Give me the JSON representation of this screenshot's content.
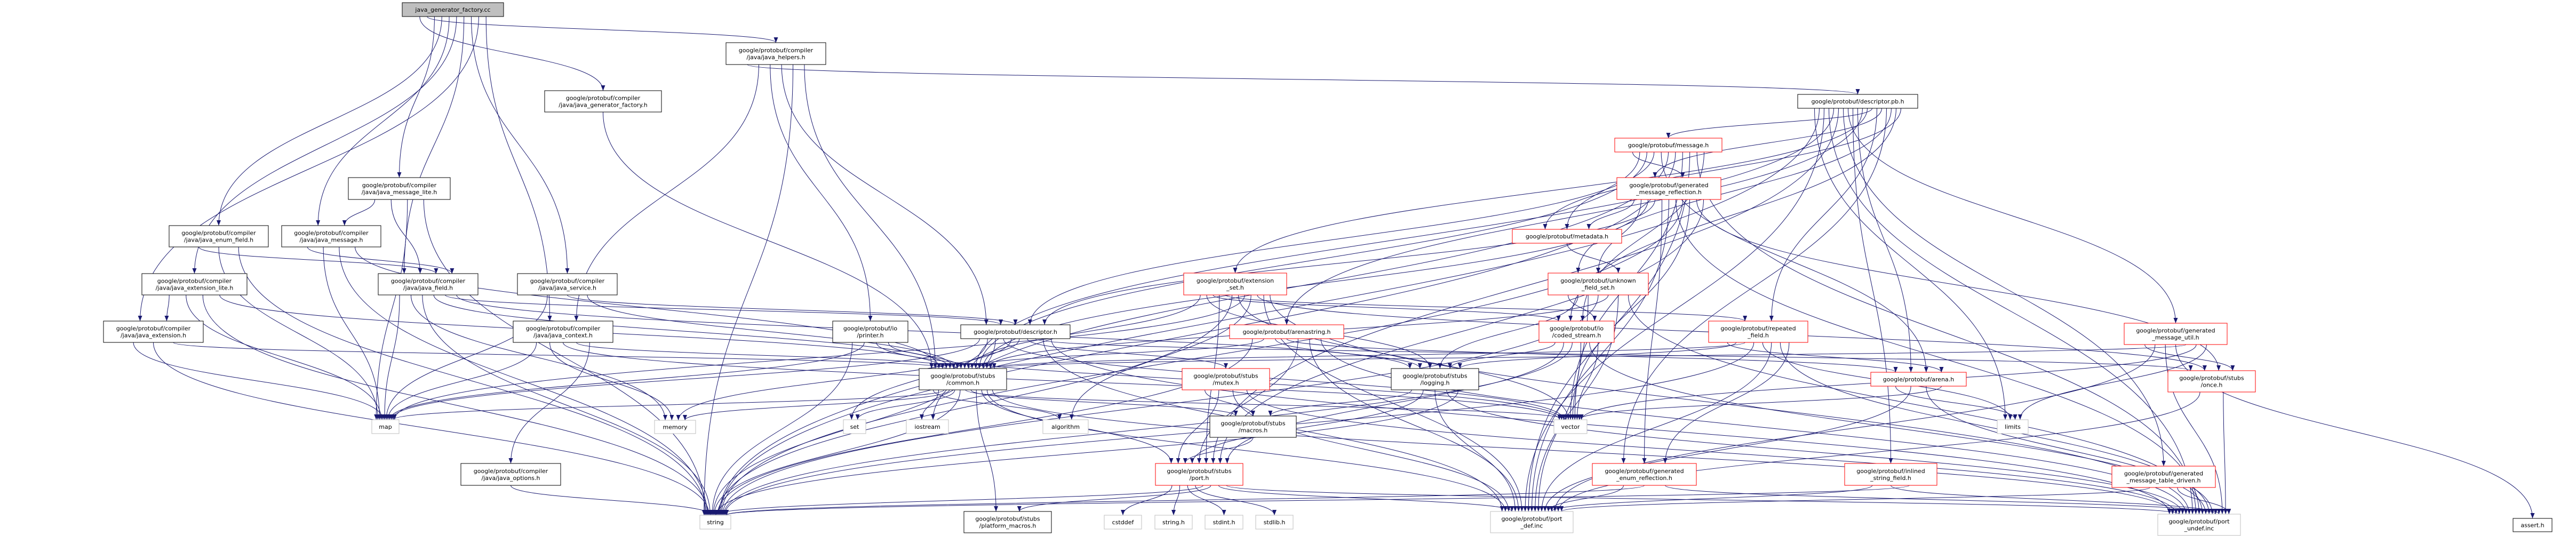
{
  "colors": {
    "edge": "#191970",
    "root_fill": "#bfbfbf",
    "documented_border": "#000000",
    "truncated_border": "#ff0000",
    "external_border": "#bfbfbf"
  },
  "nodes": [
    {
      "name": "java_generator_factory.cc",
      "lines": [
        "java_generator_factory.cc"
      ],
      "kind": "root"
    },
    {
      "name": "google/protobuf/compiler/java/java_generator_factory.h",
      "lines": [
        "google/protobuf/compiler",
        "/java/java_generator_factory.h"
      ],
      "kind": "documented"
    },
    {
      "name": "google/protobuf/compiler/java/java_helpers.h",
      "lines": [
        "google/protobuf/compiler",
        "/java/java_helpers.h"
      ],
      "kind": "documented"
    },
    {
      "name": "google/protobuf/descriptor.pb.h",
      "lines": [
        "google/protobuf/descriptor.pb.h"
      ],
      "kind": "documented"
    },
    {
      "name": "google/protobuf/compiler/java/java_message_lite.h",
      "lines": [
        "google/protobuf/compiler",
        "/java/java_message_lite.h"
      ],
      "kind": "documented"
    },
    {
      "name": "google/protobuf/compiler/java/java_enum_field.h",
      "lines": [
        "google/protobuf/compiler",
        "/java/java_enum_field.h"
      ],
      "kind": "documented"
    },
    {
      "name": "google/protobuf/compiler/java/java_message.h",
      "lines": [
        "google/protobuf/compiler",
        "/java/java_message.h"
      ],
      "kind": "documented"
    },
    {
      "name": "google/protobuf/compiler/java/java_extension_lite.h",
      "lines": [
        "google/protobuf/compiler",
        "/java/java_extension_lite.h"
      ],
      "kind": "documented"
    },
    {
      "name": "google/protobuf/compiler/java/java_field.h",
      "lines": [
        "google/protobuf/compiler",
        "/java/java_field.h"
      ],
      "kind": "documented"
    },
    {
      "name": "google/protobuf/compiler/java/java_service.h",
      "lines": [
        "google/protobuf/compiler",
        "/java/java_service.h"
      ],
      "kind": "documented"
    },
    {
      "name": "google/protobuf/compiler/java/java_extension.h",
      "lines": [
        "google/protobuf/compiler",
        "/java/java_extension.h"
      ],
      "kind": "documented"
    },
    {
      "name": "google/protobuf/compiler/java/java_context.h",
      "lines": [
        "google/protobuf/compiler",
        "/java/java_context.h"
      ],
      "kind": "documented"
    },
    {
      "name": "map",
      "lines": [
        "map"
      ],
      "kind": "external"
    },
    {
      "name": "memory",
      "lines": [
        "memory"
      ],
      "kind": "external"
    },
    {
      "name": "google/protobuf/compiler/java/java_options.h",
      "lines": [
        "google/protobuf/compiler",
        "/java/java_options.h"
      ],
      "kind": "documented"
    },
    {
      "name": "google/protobuf/io/printer.h",
      "lines": [
        "google/protobuf/io",
        "/printer.h"
      ],
      "kind": "documented"
    },
    {
      "name": "google/protobuf/descriptor.h",
      "lines": [
        "google/protobuf/descriptor.h"
      ],
      "kind": "documented"
    },
    {
      "name": "google/protobuf/extension_set.h",
      "lines": [
        "google/protobuf/extension",
        "_set.h"
      ],
      "kind": "truncated"
    },
    {
      "name": "google/protobuf/arenastring.h",
      "lines": [
        "google/protobuf/arenastring.h"
      ],
      "kind": "truncated"
    },
    {
      "name": "google/protobuf/stubs/common.h",
      "lines": [
        "google/protobuf/stubs",
        "/common.h"
      ],
      "kind": "documented"
    },
    {
      "name": "google/protobuf/stubs/mutex.h",
      "lines": [
        "google/protobuf/stubs",
        "/mutex.h"
      ],
      "kind": "truncated"
    },
    {
      "name": "set",
      "lines": [
        "set"
      ],
      "kind": "external"
    },
    {
      "name": "iostream",
      "lines": [
        "iostream"
      ],
      "kind": "external"
    },
    {
      "name": "algorithm",
      "lines": [
        "algorithm"
      ],
      "kind": "external"
    },
    {
      "name": "google/protobuf/stubs/macros.h",
      "lines": [
        "google/protobuf/stubs",
        "/macros.h"
      ],
      "kind": "documented"
    },
    {
      "name": "google/protobuf/stubs/port.h",
      "lines": [
        "google/protobuf/stubs",
        "/port.h"
      ],
      "kind": "truncated"
    },
    {
      "name": "string",
      "lines": [
        "string"
      ],
      "kind": "external"
    },
    {
      "name": "google/protobuf/stubs/platform_macros.h",
      "lines": [
        "google/protobuf/stubs",
        "/platform_macros.h"
      ],
      "kind": "documented"
    },
    {
      "name": "cstddef",
      "lines": [
        "cstddef"
      ],
      "kind": "external"
    },
    {
      "name": "string.h",
      "lines": [
        "string.h"
      ],
      "kind": "external"
    },
    {
      "name": "stdint.h",
      "lines": [
        "stdint.h"
      ],
      "kind": "external"
    },
    {
      "name": "stdlib.h",
      "lines": [
        "stdlib.h"
      ],
      "kind": "external"
    },
    {
      "name": "google/protobuf/message.h",
      "lines": [
        "google/protobuf/message.h"
      ],
      "kind": "truncated"
    },
    {
      "name": "google/protobuf/generated_message_reflection.h",
      "lines": [
        "google/protobuf/generated",
        "_message_reflection.h"
      ],
      "kind": "truncated"
    },
    {
      "name": "google/protobuf/metadata.h",
      "lines": [
        "google/protobuf/metadata.h"
      ],
      "kind": "truncated"
    },
    {
      "name": "google/protobuf/unknown_field_set.h",
      "lines": [
        "google/protobuf/unknown",
        "_field_set.h"
      ],
      "kind": "truncated"
    },
    {
      "name": "google/protobuf/io/coded_stream.h",
      "lines": [
        "google/protobuf/io",
        "/coded_stream.h"
      ],
      "kind": "truncated"
    },
    {
      "name": "google/protobuf/repeated_field.h",
      "lines": [
        "google/protobuf/repeated",
        "_field.h"
      ],
      "kind": "truncated"
    },
    {
      "name": "google/protobuf/stubs/logging.h",
      "lines": [
        "google/protobuf/stubs",
        "/logging.h"
      ],
      "kind": "documented"
    },
    {
      "name": "google/protobuf/arena.h",
      "lines": [
        "google/protobuf/arena.h"
      ],
      "kind": "truncated"
    },
    {
      "name": "vector",
      "lines": [
        "vector"
      ],
      "kind": "external"
    },
    {
      "name": "limits",
      "lines": [
        "limits"
      ],
      "kind": "external"
    },
    {
      "name": "google/protobuf/generated_enum_reflection.h",
      "lines": [
        "google/protobuf/generated",
        "_enum_reflection.h"
      ],
      "kind": "truncated"
    },
    {
      "name": "google/protobuf/inlined_string_field.h",
      "lines": [
        "google/protobuf/inlined",
        "_string_field.h"
      ],
      "kind": "truncated"
    },
    {
      "name": "google/protobuf/port_def.inc",
      "lines": [
        "google/protobuf/port",
        "_def.inc"
      ],
      "kind": "external"
    },
    {
      "name": "google/protobuf/generated_message_util.h",
      "lines": [
        "google/protobuf/generated",
        "_message_util.h"
      ],
      "kind": "truncated"
    },
    {
      "name": "google/protobuf/stubs/once.h",
      "lines": [
        "google/protobuf/stubs",
        "/once.h"
      ],
      "kind": "truncated"
    },
    {
      "name": "google/protobuf/generated_message_table_driven.h",
      "lines": [
        "google/protobuf/generated",
        "_message_table_driven.h"
      ],
      "kind": "truncated"
    },
    {
      "name": "google/protobuf/port_undef.inc",
      "lines": [
        "google/protobuf/port",
        "_undef.inc"
      ],
      "kind": "external"
    },
    {
      "name": "assert.h",
      "lines": [
        "assert.h"
      ],
      "kind": "documented"
    }
  ],
  "edges": [
    {
      "from": "java_generator_factory.cc",
      "to": [
        "google/protobuf/compiler/java/java_generator_factory.h",
        "google/protobuf/compiler/java/java_helpers.h",
        "google/protobuf/compiler/java/java_message_lite.h",
        "google/protobuf/compiler/java/java_enum_field.h",
        "google/protobuf/compiler/java/java_message.h",
        "google/protobuf/compiler/java/java_extension_lite.h",
        "google/protobuf/compiler/java/java_field.h",
        "google/protobuf/compiler/java/java_service.h",
        "google/protobuf/compiler/java/java_extension.h",
        "google/protobuf/compiler/java/java_context.h"
      ]
    },
    {
      "from": "google/protobuf/compiler/java/java_generator_factory.h",
      "to": [
        "google/protobuf/stubs/common.h"
      ]
    },
    {
      "from": "google/protobuf/compiler/java/java_helpers.h",
      "to": [
        "google/protobuf/descriptor.pb.h",
        "google/protobuf/compiler/java/java_context.h",
        "google/protobuf/io/printer.h",
        "google/protobuf/descriptor.h",
        "string",
        "google/protobuf/stubs/common.h"
      ]
    },
    {
      "from": "google/protobuf/compiler/java/java_message_lite.h",
      "to": [
        "google/protobuf/compiler/java/java_message.h",
        "google/protobuf/compiler/java/java_field.h",
        "map",
        "string"
      ]
    },
    {
      "from": "google/protobuf/compiler/java/java_enum_field.h",
      "to": [
        "google/protobuf/compiler/java/java_field.h",
        "map",
        "string"
      ]
    },
    {
      "from": "google/protobuf/compiler/java/java_message.h",
      "to": [
        "google/protobuf/compiler/java/java_field.h",
        "map",
        "string",
        "google/protobuf/stubs/common.h"
      ]
    },
    {
      "from": "google/protobuf/compiler/java/java_extension_lite.h",
      "to": [
        "google/protobuf/compiler/java/java_extension.h",
        "map",
        "string",
        "google/protobuf/stubs/common.h"
      ]
    },
    {
      "from": "google/protobuf/compiler/java/java_extension.h",
      "to": [
        "map",
        "string",
        "google/protobuf/stubs/common.h"
      ]
    },
    {
      "from": "google/protobuf/compiler/java/java_field.h",
      "to": [
        "map",
        "memory",
        "string",
        "google/protobuf/stubs/common.h",
        "google/protobuf/descriptor.h",
        "google/protobuf/stubs/logging.h"
      ]
    },
    {
      "from": "google/protobuf/compiler/java/java_service.h",
      "to": [
        "map",
        "google/protobuf/descriptor.h",
        "google/protobuf/stubs/common.h"
      ]
    },
    {
      "from": "google/protobuf/compiler/java/java_context.h",
      "to": [
        "map",
        "memory",
        "vector",
        "google/protobuf/stubs/common.h",
        "google/protobuf/compiler/java/java_options.h"
      ]
    },
    {
      "from": "google/protobuf/compiler/java/java_options.h",
      "to": [
        "string"
      ]
    },
    {
      "from": "google/protobuf/io/printer.h",
      "to": [
        "string",
        "map",
        "vector",
        "google/protobuf/stubs/common.h"
      ]
    },
    {
      "from": "google/protobuf/descriptor.h",
      "to": [
        "map",
        "set",
        "string",
        "vector",
        "memory",
        "google/protobuf/stubs/common.h",
        "google/protobuf/stubs/mutex.h",
        "google/protobuf/stubs/once.h",
        "google/protobuf/port_def.inc",
        "google/protobuf/port_undef.inc"
      ]
    },
    {
      "from": "google/protobuf/stubs/common.h",
      "to": [
        "algorithm",
        "iostream",
        "map",
        "memory",
        "set",
        "string",
        "vector",
        "google/protobuf/stubs/macros.h",
        "google/protobuf/stubs/platform_macros.h",
        "google/protobuf/stubs/port.h",
        "google/protobuf/port_def.inc",
        "google/protobuf/port_undef.inc"
      ]
    },
    {
      "from": "google/protobuf/stubs/mutex.h",
      "to": [
        "google/protobuf/stubs/macros.h",
        "google/protobuf/stubs/port.h",
        "google/protobuf/port_def.inc",
        "google/protobuf/port_undef.inc"
      ]
    },
    {
      "from": "google/protobuf/stubs/macros.h",
      "to": [
        "google/protobuf/stubs/port.h"
      ]
    },
    {
      "from": "google/protobuf/stubs/port.h",
      "to": [
        "cstddef",
        "string.h",
        "stdint.h",
        "stdlib.h",
        "string",
        "google/protobuf/stubs/platform_macros.h",
        "google/protobuf/port_def.inc",
        "google/protobuf/port_undef.inc"
      ]
    },
    {
      "from": "google/protobuf/stubs/logging.h",
      "to": [
        "google/protobuf/stubs/macros.h",
        "google/protobuf/stubs/port.h",
        "google/protobuf/port_def.inc",
        "google/protobuf/port_undef.inc",
        "string"
      ]
    },
    {
      "from": "google/protobuf/arenastring.h",
      "to": [
        "string",
        "google/protobuf/stubs/common.h",
        "google/protobuf/stubs/logging.h",
        "google/protobuf/arena.h",
        "google/protobuf/stubs/port.h",
        "google/protobuf/port_def.inc",
        "google/protobuf/port_undef.inc"
      ]
    },
    {
      "from": "google/protobuf/extension_set.h",
      "to": [
        "google/protobuf/stubs/common.h",
        "google/protobuf/stubs/logging.h",
        "google/protobuf/io/coded_stream.h",
        "google/protobuf/stubs/port.h",
        "google/protobuf/repeated_field.h",
        "string",
        "vector",
        "map",
        "algorithm",
        "google/protobuf/stubs/once.h",
        "google/protobuf/port_def.inc",
        "google/protobuf/port_undef.inc"
      ]
    },
    {
      "from": "google/protobuf/descriptor.pb.h",
      "to": [
        "limits",
        "string",
        "google/protobuf/port_def.inc",
        "google/protobuf/port_undef.inc",
        "google/protobuf/stubs/common.h",
        "google/protobuf/stubs/port.h",
        "google/protobuf/generated_message_table_driven.h",
        "google/protobuf/generated_message_util.h",
        "google/protobuf/inlined_string_field.h",
        "google/protobuf/arena.h",
        "google/protobuf/arenastring.h",
        "google/protobuf/extension_set.h",
        "google/protobuf/message.h",
        "google/protobuf/repeated_field.h",
        "google/protobuf/generated_message_reflection.h",
        "google/protobuf/generated_enum_reflection.h",
        "google/protobuf/unknown_field_set.h",
        "google/protobuf/io/coded_stream.h",
        "google/protobuf/metadata.h"
      ]
    },
    {
      "from": "google/protobuf/message.h",
      "to": [
        "google/protobuf/generated_message_reflection.h",
        "google/protobuf/metadata.h",
        "google/protobuf/stubs/common.h",
        "google/protobuf/descriptor.h",
        "google/protobuf/arena.h",
        "iostream",
        "string",
        "vector",
        "google/protobuf/port_def.inc",
        "google/protobuf/port_undef.inc",
        "google/protobuf/io/coded_stream.h"
      ]
    },
    {
      "from": "google/protobuf/generated_message_reflection.h",
      "to": [
        "google/protobuf/metadata.h",
        "google/protobuf/unknown_field_set.h",
        "google/protobuf/stubs/common.h",
        "google/protobuf/descriptor.h",
        "google/protobuf/generated_enum_reflection.h",
        "google/protobuf/port_def.inc",
        "google/protobuf/port_undef.inc",
        "string",
        "vector",
        "google/protobuf/stubs/once.h",
        "google/protobuf/stubs/port.h"
      ]
    },
    {
      "from": "google/protobuf/metadata.h",
      "to": [
        "google/protobuf/unknown_field_set.h"
      ]
    },
    {
      "from": "google/protobuf/unknown_field_set.h",
      "to": [
        "google/protobuf/io/coded_stream.h",
        "google/protobuf/stubs/logging.h",
        "vector",
        "string",
        "google/protobuf/stubs/common.h",
        "google/protobuf/port_def.inc",
        "google/protobuf/port_undef.inc"
      ]
    },
    {
      "from": "google/protobuf/io/coded_stream.h",
      "to": [
        "google/protobuf/stubs/logging.h",
        "google/protobuf/stubs/port.h",
        "string",
        "google/protobuf/port_def.inc",
        "google/protobuf/port_undef.inc",
        "vector"
      ]
    },
    {
      "from": "google/protobuf/repeated_field.h",
      "to": [
        "google/protobuf/arena.h",
        "google/protobuf/stubs/logging.h",
        "google/protobuf/stubs/common.h",
        "string",
        "limits",
        "google/protobuf/port_def.inc",
        "google/protobuf/port_undef.inc",
        "google/protobuf/generated_enum_reflection.h"
      ]
    },
    {
      "from": "google/protobuf/arena.h",
      "to": [
        "limits",
        "google/protobuf/port_def.inc",
        "google/protobuf/port_undef.inc",
        "vector"
      ]
    },
    {
      "from": "google/protobuf/generated_enum_reflection.h",
      "to": [
        "google/protobuf/port_def.inc",
        "string",
        "google/protobuf/port_undef.inc"
      ]
    },
    {
      "from": "google/protobuf/inlined_string_field.h",
      "to": [
        "google/protobuf/port_def.inc",
        "google/protobuf/port_undef.inc",
        "string"
      ]
    },
    {
      "from": "google/protobuf/generated_message_util.h",
      "to": [
        "google/protobuf/stubs/once.h",
        "google/protobuf/port_def.inc",
        "google/protobuf/port_undef.inc",
        "assert.h",
        "google/protobuf/stubs/common.h",
        "vector",
        "limits"
      ]
    },
    {
      "from": "google/protobuf/stubs/once.h",
      "to": [
        "google/protobuf/port_def.inc",
        "google/protobuf/port_undef.inc"
      ]
    },
    {
      "from": "google/protobuf/generated_message_table_driven.h",
      "to": [
        "google/protobuf/port_def.inc",
        "google/protobuf/port_undef.inc"
      ]
    }
  ]
}
